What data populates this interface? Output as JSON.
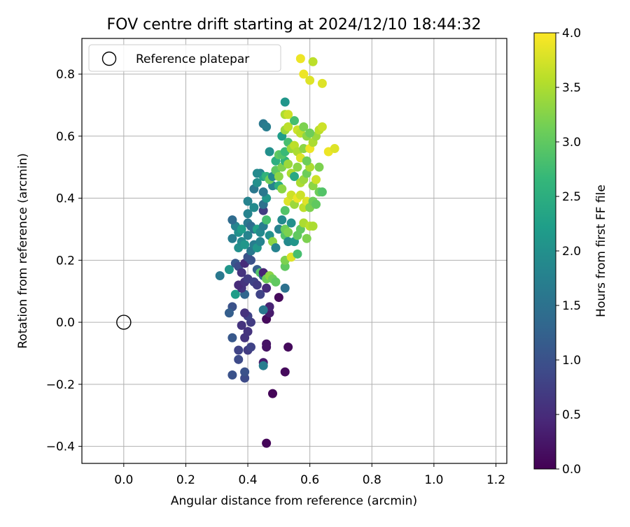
{
  "chart_data": {
    "type": "scatter",
    "title": "FOV centre drift starting at 2024/12/10 18:44:32",
    "xlabel": "Angular distance from reference (arcmin)",
    "ylabel": "Rotation from reference (arcmin)",
    "xlim": [
      -0.135,
      1.235
    ],
    "ylim": [
      -0.455,
      0.915
    ],
    "xticks": [
      0.0,
      0.2,
      0.4,
      0.6,
      0.8,
      1.0,
      1.2
    ],
    "xtick_labels": [
      "0.0",
      "0.2",
      "0.4",
      "0.6",
      "0.8",
      "1.0",
      "1.2"
    ],
    "yticks": [
      -0.4,
      -0.2,
      0.0,
      0.2,
      0.4,
      0.6,
      0.8
    ],
    "ytick_labels": [
      "−0.4",
      "−0.2",
      "0.0",
      "0.2",
      "0.4",
      "0.6",
      "0.8"
    ],
    "grid": true,
    "legend_position": "top-left",
    "legend": [
      {
        "label": "Reference platepar",
        "marker": "open-circle"
      }
    ],
    "reference_point": {
      "x": 0.0,
      "y": 0.0
    },
    "colorbar": {
      "label": "Hours from first FF file",
      "min": 0.0,
      "max": 4.0,
      "ticks": [
        0.0,
        0.5,
        1.0,
        1.5,
        2.0,
        2.5,
        3.0,
        3.5,
        4.0
      ],
      "tick_labels": [
        "0.0",
        "0.5",
        "1.0",
        "1.5",
        "2.0",
        "2.5",
        "3.0",
        "3.5",
        "4.0"
      ],
      "colormap": "viridis"
    },
    "points": [
      [
        0.46,
        -0.39,
        0.05
      ],
      [
        0.48,
        -0.23,
        0.05
      ],
      [
        0.52,
        -0.16,
        0.1
      ],
      [
        0.53,
        -0.08,
        0.1
      ],
      [
        0.46,
        -0.08,
        0.2
      ],
      [
        0.46,
        -0.07,
        0.2
      ],
      [
        0.45,
        -0.13,
        0.3
      ],
      [
        0.46,
        0.01,
        0.1
      ],
      [
        0.5,
        0.08,
        0.1
      ],
      [
        0.47,
        0.03,
        0.3
      ],
      [
        0.47,
        0.05,
        0.4
      ],
      [
        0.46,
        0.11,
        0.5
      ],
      [
        0.39,
        -0.18,
        0.9
      ],
      [
        0.39,
        -0.16,
        1.0
      ],
      [
        0.35,
        -0.17,
        1.0
      ],
      [
        0.37,
        -0.12,
        0.9
      ],
      [
        0.4,
        -0.09,
        0.7
      ],
      [
        0.41,
        -0.08,
        0.8
      ],
      [
        0.37,
        -0.09,
        0.8
      ],
      [
        0.35,
        -0.05,
        1.1
      ],
      [
        0.39,
        -0.05,
        0.6
      ],
      [
        0.38,
        -0.01,
        0.6
      ],
      [
        0.4,
        -0.03,
        0.6
      ],
      [
        0.41,
        0.0,
        0.7
      ],
      [
        0.4,
        0.02,
        0.8
      ],
      [
        0.39,
        0.03,
        0.6
      ],
      [
        0.35,
        0.05,
        1.0
      ],
      [
        0.34,
        0.03,
        1.2
      ],
      [
        0.36,
        0.09,
        2.2
      ],
      [
        0.39,
        0.09,
        1.3
      ],
      [
        0.38,
        0.11,
        0.6
      ],
      [
        0.37,
        0.12,
        0.5
      ],
      [
        0.39,
        0.13,
        0.6
      ],
      [
        0.4,
        0.14,
        0.7
      ],
      [
        0.42,
        0.13,
        0.8
      ],
      [
        0.43,
        0.12,
        0.7
      ],
      [
        0.44,
        0.09,
        0.8
      ],
      [
        0.45,
        0.04,
        1.6
      ],
      [
        0.45,
        -0.14,
        1.7
      ],
      [
        0.31,
        0.15,
        1.6
      ],
      [
        0.34,
        0.17,
        2.1
      ],
      [
        0.36,
        0.19,
        1.1
      ],
      [
        0.37,
        0.18,
        0.9
      ],
      [
        0.38,
        0.16,
        0.6
      ],
      [
        0.39,
        0.19,
        0.5
      ],
      [
        0.4,
        0.21,
        1.0
      ],
      [
        0.41,
        0.2,
        1.0
      ],
      [
        0.43,
        0.17,
        1.2
      ],
      [
        0.44,
        0.16,
        2.9
      ],
      [
        0.45,
        0.15,
        1.3
      ],
      [
        0.45,
        0.16,
        0.4
      ],
      [
        0.46,
        0.14,
        3.1
      ],
      [
        0.47,
        0.15,
        3.3
      ],
      [
        0.48,
        0.14,
        3.1
      ],
      [
        0.49,
        0.13,
        3.0
      ],
      [
        0.52,
        0.11,
        1.5
      ],
      [
        0.52,
        0.18,
        3.0
      ],
      [
        0.52,
        0.2,
        3.2
      ],
      [
        0.54,
        0.21,
        3.8
      ],
      [
        0.56,
        0.22,
        2.8
      ],
      [
        0.37,
        0.24,
        2.0
      ],
      [
        0.38,
        0.26,
        1.9
      ],
      [
        0.39,
        0.25,
        2.1
      ],
      [
        0.4,
        0.28,
        1.8
      ],
      [
        0.41,
        0.23,
        1.6
      ],
      [
        0.42,
        0.25,
        1.7
      ],
      [
        0.43,
        0.24,
        2.1
      ],
      [
        0.44,
        0.26,
        1.8
      ],
      [
        0.35,
        0.27,
        1.7
      ],
      [
        0.37,
        0.29,
        2.0
      ],
      [
        0.36,
        0.31,
        1.8
      ],
      [
        0.35,
        0.33,
        1.4
      ],
      [
        0.38,
        0.3,
        2.2
      ],
      [
        0.4,
        0.32,
        1.6
      ],
      [
        0.41,
        0.31,
        1.4
      ],
      [
        0.42,
        0.3,
        1.5
      ],
      [
        0.43,
        0.3,
        2.3
      ],
      [
        0.44,
        0.29,
        1.9
      ],
      [
        0.45,
        0.31,
        1.7
      ],
      [
        0.46,
        0.33,
        2.8
      ],
      [
        0.47,
        0.28,
        2.0
      ],
      [
        0.48,
        0.26,
        3.3
      ],
      [
        0.49,
        0.24,
        1.8
      ],
      [
        0.5,
        0.3,
        1.8
      ],
      [
        0.51,
        0.33,
        1.9
      ],
      [
        0.52,
        0.28,
        2.9
      ],
      [
        0.52,
        0.3,
        3.1
      ],
      [
        0.53,
        0.29,
        3.2
      ],
      [
        0.53,
        0.26,
        1.9
      ],
      [
        0.54,
        0.32,
        2.0
      ],
      [
        0.55,
        0.26,
        2.1
      ],
      [
        0.56,
        0.28,
        3.0
      ],
      [
        0.57,
        0.3,
        3.0
      ],
      [
        0.58,
        0.32,
        3.5
      ],
      [
        0.59,
        0.27,
        3.2
      ],
      [
        0.6,
        0.31,
        3.6
      ],
      [
        0.61,
        0.31,
        3.5
      ],
      [
        0.4,
        0.35,
        1.8
      ],
      [
        0.42,
        0.37,
        1.9
      ],
      [
        0.45,
        0.36,
        0.7
      ],
      [
        0.45,
        0.38,
        1.5
      ],
      [
        0.46,
        0.4,
        2.1
      ],
      [
        0.45,
        0.42,
        1.6
      ],
      [
        0.48,
        0.44,
        1.8
      ],
      [
        0.5,
        0.44,
        2.5
      ],
      [
        0.51,
        0.43,
        3.3
      ],
      [
        0.52,
        0.36,
        2.9
      ],
      [
        0.53,
        0.39,
        3.8
      ],
      [
        0.54,
        0.41,
        3.7
      ],
      [
        0.55,
        0.38,
        3.4
      ],
      [
        0.56,
        0.4,
        3.9
      ],
      [
        0.57,
        0.41,
        3.7
      ],
      [
        0.58,
        0.37,
        3.6
      ],
      [
        0.59,
        0.39,
        3.8
      ],
      [
        0.6,
        0.37,
        3.2
      ],
      [
        0.61,
        0.39,
        3.1
      ],
      [
        0.62,
        0.38,
        3.0
      ],
      [
        0.63,
        0.42,
        3.1
      ],
      [
        0.64,
        0.42,
        2.9
      ],
      [
        0.4,
        0.39,
        1.8
      ],
      [
        0.42,
        0.43,
        1.6
      ],
      [
        0.43,
        0.45,
        2.0
      ],
      [
        0.44,
        0.48,
        1.8
      ],
      [
        0.45,
        0.47,
        2.3
      ],
      [
        0.46,
        0.47,
        2.6
      ],
      [
        0.47,
        0.46,
        3.1
      ],
      [
        0.48,
        0.47,
        1.9
      ],
      [
        0.49,
        0.49,
        3.0
      ],
      [
        0.5,
        0.47,
        3.3
      ],
      [
        0.51,
        0.5,
        3.2
      ],
      [
        0.52,
        0.52,
        2.6
      ],
      [
        0.53,
        0.51,
        3.4
      ],
      [
        0.54,
        0.48,
        3.5
      ],
      [
        0.55,
        0.47,
        2.4
      ],
      [
        0.56,
        0.5,
        3.3
      ],
      [
        0.57,
        0.45,
        3.5
      ],
      [
        0.58,
        0.46,
        3.4
      ],
      [
        0.59,
        0.48,
        3.1
      ],
      [
        0.6,
        0.5,
        3.5
      ],
      [
        0.61,
        0.44,
        3.3
      ],
      [
        0.62,
        0.46,
        3.7
      ],
      [
        0.63,
        0.5,
        3.2
      ],
      [
        0.43,
        0.48,
        1.9
      ],
      [
        0.47,
        0.55,
        2.0
      ],
      [
        0.49,
        0.52,
        2.5
      ],
      [
        0.5,
        0.54,
        3.0
      ],
      [
        0.51,
        0.54,
        2.9
      ],
      [
        0.52,
        0.55,
        2.7
      ],
      [
        0.53,
        0.58,
        2.8
      ],
      [
        0.54,
        0.56,
        3.4
      ],
      [
        0.55,
        0.57,
        3.6
      ],
      [
        0.56,
        0.55,
        3.5
      ],
      [
        0.57,
        0.53,
        3.8
      ],
      [
        0.58,
        0.56,
        3.3
      ],
      [
        0.59,
        0.52,
        3.1
      ],
      [
        0.6,
        0.56,
        3.9
      ],
      [
        0.61,
        0.58,
        3.5
      ],
      [
        0.62,
        0.6,
        3.4
      ],
      [
        0.63,
        0.62,
        3.6
      ],
      [
        0.64,
        0.63,
        3.7
      ],
      [
        0.66,
        0.55,
        3.9
      ],
      [
        0.68,
        0.56,
        3.8
      ],
      [
        0.45,
        0.64,
        1.6
      ],
      [
        0.46,
        0.63,
        1.7
      ],
      [
        0.51,
        0.6,
        2.2
      ],
      [
        0.52,
        0.62,
        3.4
      ],
      [
        0.53,
        0.63,
        3.6
      ],
      [
        0.55,
        0.65,
        2.8
      ],
      [
        0.56,
        0.62,
        3.7
      ],
      [
        0.57,
        0.61,
        3.6
      ],
      [
        0.58,
        0.63,
        3.2
      ],
      [
        0.59,
        0.6,
        3.3
      ],
      [
        0.6,
        0.61,
        3.1
      ],
      [
        0.52,
        0.67,
        3.5
      ],
      [
        0.53,
        0.67,
        3.7
      ],
      [
        0.52,
        0.71,
        2.1
      ],
      [
        0.57,
        0.85,
        3.9
      ],
      [
        0.58,
        0.8,
        3.9
      ],
      [
        0.6,
        0.78,
        3.8
      ],
      [
        0.61,
        0.84,
        3.6
      ],
      [
        0.64,
        0.77,
        3.8
      ]
    ]
  }
}
